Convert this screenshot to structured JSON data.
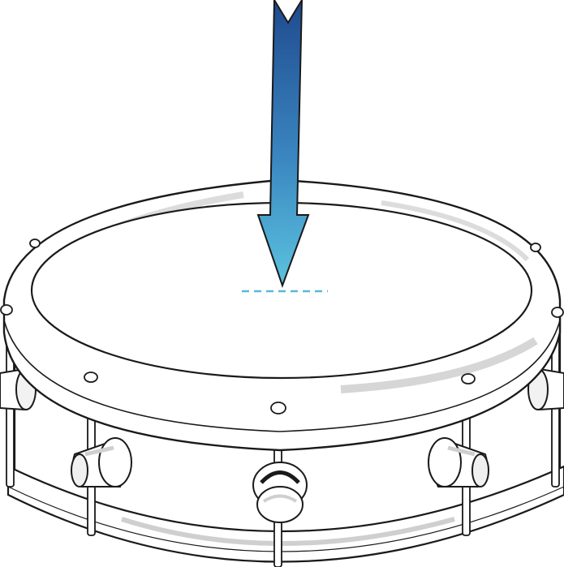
{
  "illustration": {
    "subject": "snare-drum",
    "indicator": "downward-arrow-strike-point",
    "colors": {
      "outline": "#1a1a1a",
      "shell_fill": "#ffffff",
      "hoop_shade": "#d9d9d9",
      "shadow_shade": "#c8c8c8",
      "arrow_top": "#1f4a8e",
      "arrow_bottom": "#5bc3df",
      "target_dash": "#5bb8d9"
    }
  }
}
